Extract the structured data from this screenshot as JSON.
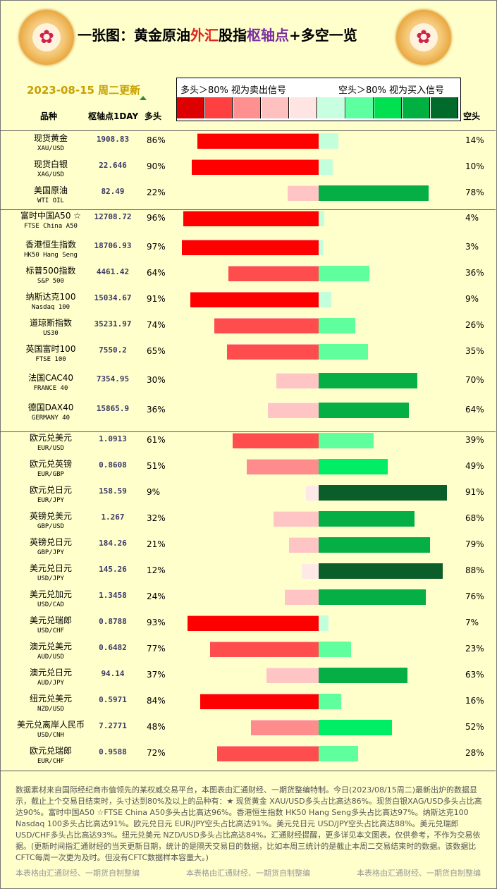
{
  "header": {
    "title_parts": [
      "一张图：黄金原油",
      "外汇",
      "股指",
      "枢轴点",
      "+多空一览"
    ],
    "logo_glyph": "✿",
    "date": "2023-08-15 周二更新",
    "legend_long": "多头＞80% 视为卖出信号",
    "legend_short": "空头＞80% 视为买入信号",
    "legend_colors": [
      "#dd0000",
      "#ff4040",
      "#ff9090",
      "#ffc0c0",
      "#ffe4e4",
      "#c8ffe0",
      "#5effa0",
      "#00e050",
      "#00b040",
      "#006b2a"
    ],
    "col_product": "品种",
    "col_pivot": "枢轴点1DAY",
    "col_long": "多头",
    "col_short": "空头"
  },
  "colors": {
    "long": [
      "#ff0000",
      "#ff4d4d",
      "#ff8c8c",
      "#ffc4c4",
      "#ffe8e8"
    ],
    "short": [
      "#0b5e2a",
      "#06ae46",
      "#00ee66",
      "#5fff9e",
      "#c4ffdc"
    ]
  },
  "chart_data": {
    "type": "bar",
    "rows": [
      {
        "name": "现货黄金",
        "code": "XAU/USD",
        "pivot": "1908.83",
        "long": 86,
        "short": 14
      },
      {
        "name": "现货白银",
        "code": "XAG/USD",
        "pivot": "22.646",
        "long": 90,
        "short": 10
      },
      {
        "name": "美国原油",
        "code": "WTI OIL",
        "pivot": "82.49",
        "long": 22,
        "short": 78
      },
      {
        "name": "富时中国A50 ☆",
        "code": "FTSE China A50",
        "pivot": "12708.72",
        "long": 96,
        "short": 4
      },
      {
        "name": "香港恒生指数",
        "code": "HK50 Hang Seng",
        "pivot": "18706.93",
        "long": 97,
        "short": 3
      },
      {
        "name": "标普500指数",
        "code": "S&P 500",
        "pivot": "4461.42",
        "long": 64,
        "short": 36
      },
      {
        "name": "纳斯达克100",
        "code": "Nasdaq 100",
        "pivot": "15034.67",
        "long": 91,
        "short": 9
      },
      {
        "name": "道琼斯指数",
        "code": "US30",
        "pivot": "35231.97",
        "long": 74,
        "short": 26
      },
      {
        "name": "英国富时100",
        "code": "FTSE 100",
        "pivot": "7550.2",
        "long": 65,
        "short": 35
      },
      {
        "name": "法国CAC40",
        "code": "FRANCE 40",
        "pivot": "7354.95",
        "long": 30,
        "short": 70
      },
      {
        "name": "德国DAX40",
        "code": "GERMANY 40",
        "pivot": "15865.9",
        "long": 36,
        "short": 64
      },
      {
        "name": "欧元兑美元",
        "code": "EUR/USD",
        "pivot": "1.0913",
        "long": 61,
        "short": 39
      },
      {
        "name": "欧元兑英镑",
        "code": "EUR/GBP",
        "pivot": "0.8608",
        "long": 51,
        "short": 49
      },
      {
        "name": "欧元兑日元",
        "code": "EUR/JPY",
        "pivot": "158.59",
        "long": 9,
        "short": 91
      },
      {
        "name": "英镑兑美元",
        "code": "GBP/USD",
        "pivot": "1.267",
        "long": 32,
        "short": 68
      },
      {
        "name": "英镑兑日元",
        "code": "GBP/JPY",
        "pivot": "184.26",
        "long": 21,
        "short": 79
      },
      {
        "name": "美元兑日元",
        "code": "USD/JPY",
        "pivot": "145.26",
        "long": 12,
        "short": 88
      },
      {
        "name": "美元兑加元",
        "code": "USD/CAD",
        "pivot": "1.3458",
        "long": 24,
        "short": 76
      },
      {
        "name": "美元兑瑞郎",
        "code": "USD/CHF",
        "pivot": "0.8788",
        "long": 93,
        "short": 7
      },
      {
        "name": "澳元兑美元",
        "code": "AUD/USD",
        "pivot": "0.6482",
        "long": 77,
        "short": 23
      },
      {
        "name": "澳元兑日元",
        "code": "AUD/JPY",
        "pivot": "94.14",
        "long": 37,
        "short": 63
      },
      {
        "name": "纽元兑美元",
        "code": "NZD/USD",
        "pivot": "0.5971",
        "long": 84,
        "short": 16
      },
      {
        "name": "美元兑离岸人民币",
        "code": "USD/CNH",
        "pivot": "7.2771",
        "long": 48,
        "short": 52
      },
      {
        "name": "欧元兑瑞郎",
        "code": "EUR/CHF",
        "pivot": "0.9588",
        "long": 72,
        "short": 28
      }
    ]
  },
  "footer": {
    "note": "数据素材来自国际经纪商市值领先的某权威交易平台，本图表由汇通财经、一期货整编特制。今日(2023/08/15周二)最新出炉的数据显示，截止上个交易日结束时，头寸达到80%及以上的品种有：★ 现货黄金 XAU/USD多头占比高达86%。现货白银XAG/USD多头占比高达90%。富时中国A50 ☆FTSE China A50多头占比高达96%。香港恒生指数 HK50 Hang Seng多头占比高达97%。纳斯达克100 Nasdaq 100多头占比高达91%。欧元兑日元 EUR/JPY空头占比高达91%。美元兑日元 USD/JPY空头占比高达88%。美元兑瑞郎 USD/CHF多头占比高达93%。纽元兑美元 NZD/USD多头占比高达84%。汇通财经提醒，更多详见本文图表。仅供参考，不作为交易依据。(更新时间指汇通财经的当天更新日期，统计的是隔天交易日的数据，比如本周三统计的是截止本周二交易结束时的数据。该数据比CFTC每周一次更为及时。但没有CFTC数据样本容量大。)",
    "credit": "本表格由汇通财经、一期货自制整编"
  }
}
